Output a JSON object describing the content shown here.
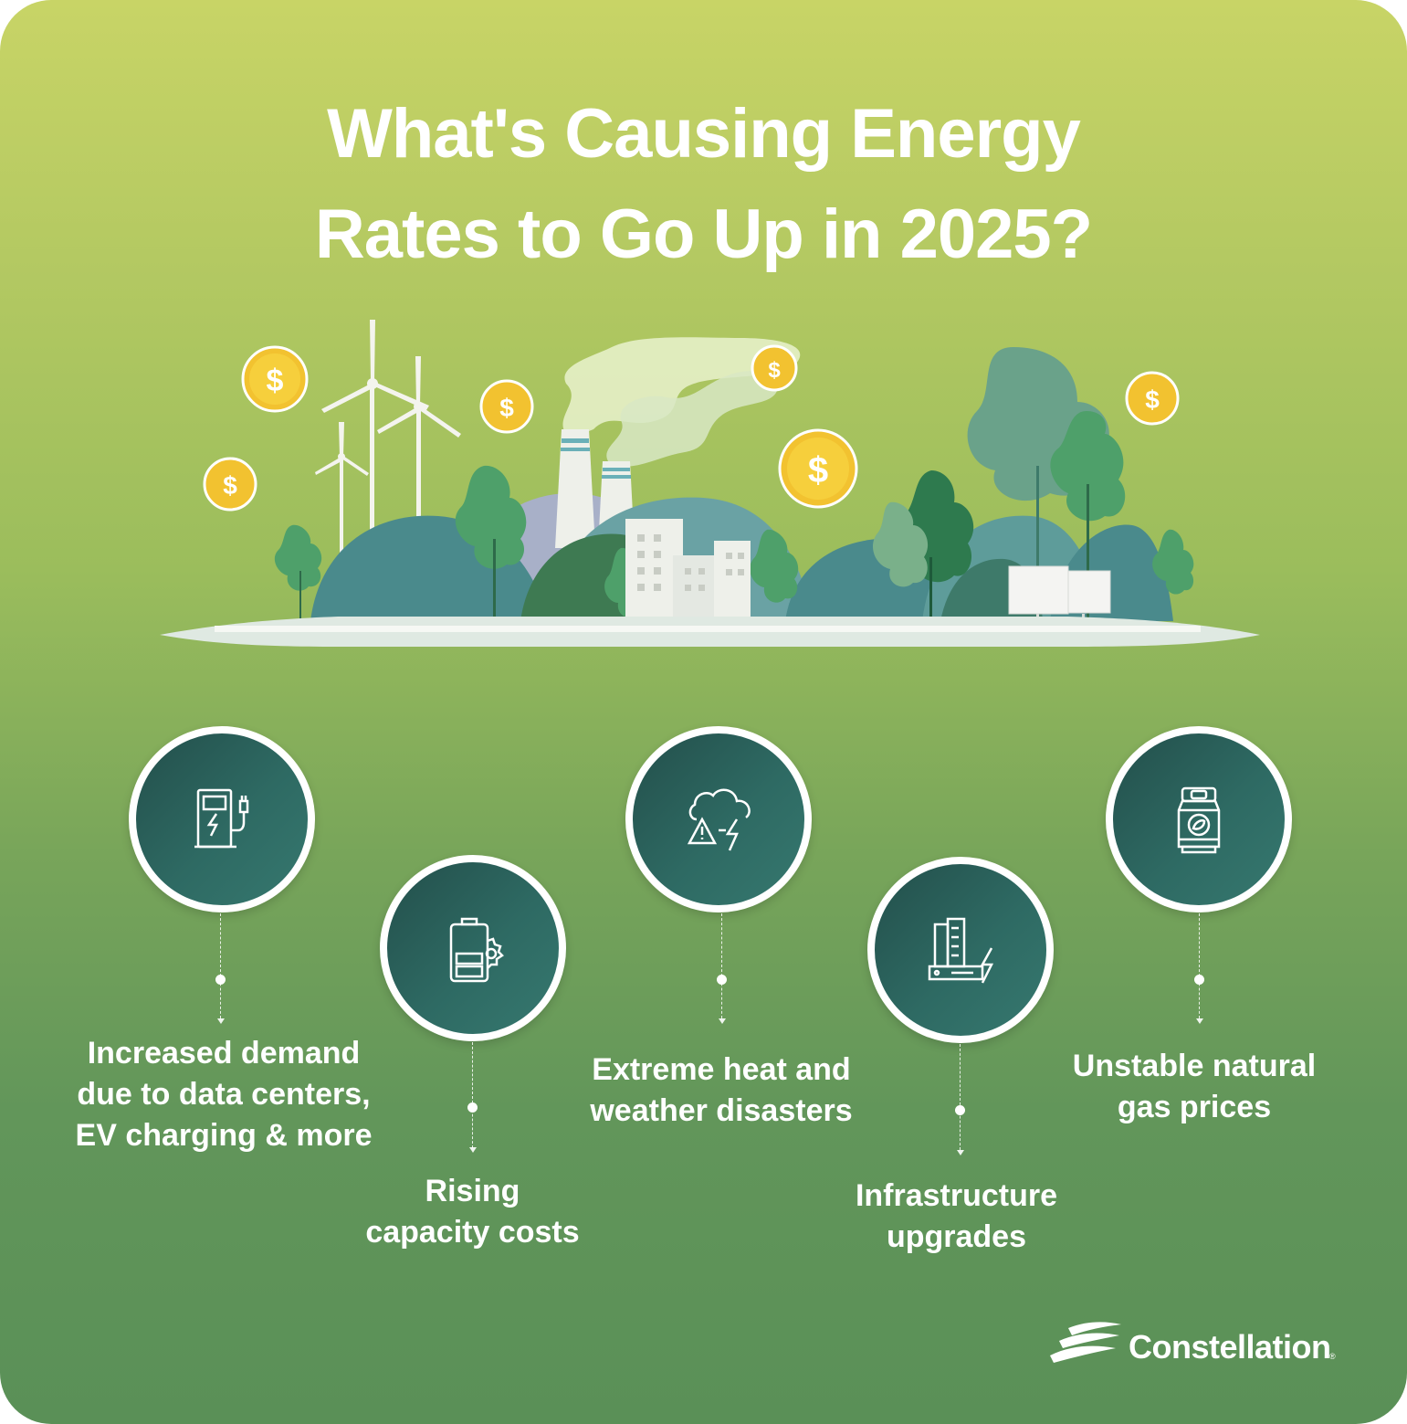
{
  "title": {
    "line1": "What's Causing Energy",
    "line2": "Rates to Go Up in 2025?"
  },
  "colors": {
    "circle_dark": "#234f4b",
    "circle_light": "#36786f",
    "text": "#ffffff",
    "coin": "#f2c230"
  },
  "coins": [
    "$",
    "$",
    "$",
    "$",
    "$",
    "$",
    "$"
  ],
  "factors": [
    {
      "icon": "ev-charger-icon",
      "lines": [
        "Increased demand",
        "due to data centers,",
        "EV charging & more"
      ]
    },
    {
      "icon": "battery-gear-icon",
      "lines": [
        "Rising",
        "capacity costs"
      ]
    },
    {
      "icon": "storm-warning-icon",
      "lines": [
        "Extreme heat and",
        "weather disasters"
      ]
    },
    {
      "icon": "power-infrastructure-icon",
      "lines": [
        "Infrastructure",
        "upgrades"
      ]
    },
    {
      "icon": "gas-cylinder-icon",
      "lines": [
        "Unstable natural",
        "gas prices"
      ]
    }
  ],
  "brand": {
    "name": "Constellation",
    "mark": "®"
  }
}
